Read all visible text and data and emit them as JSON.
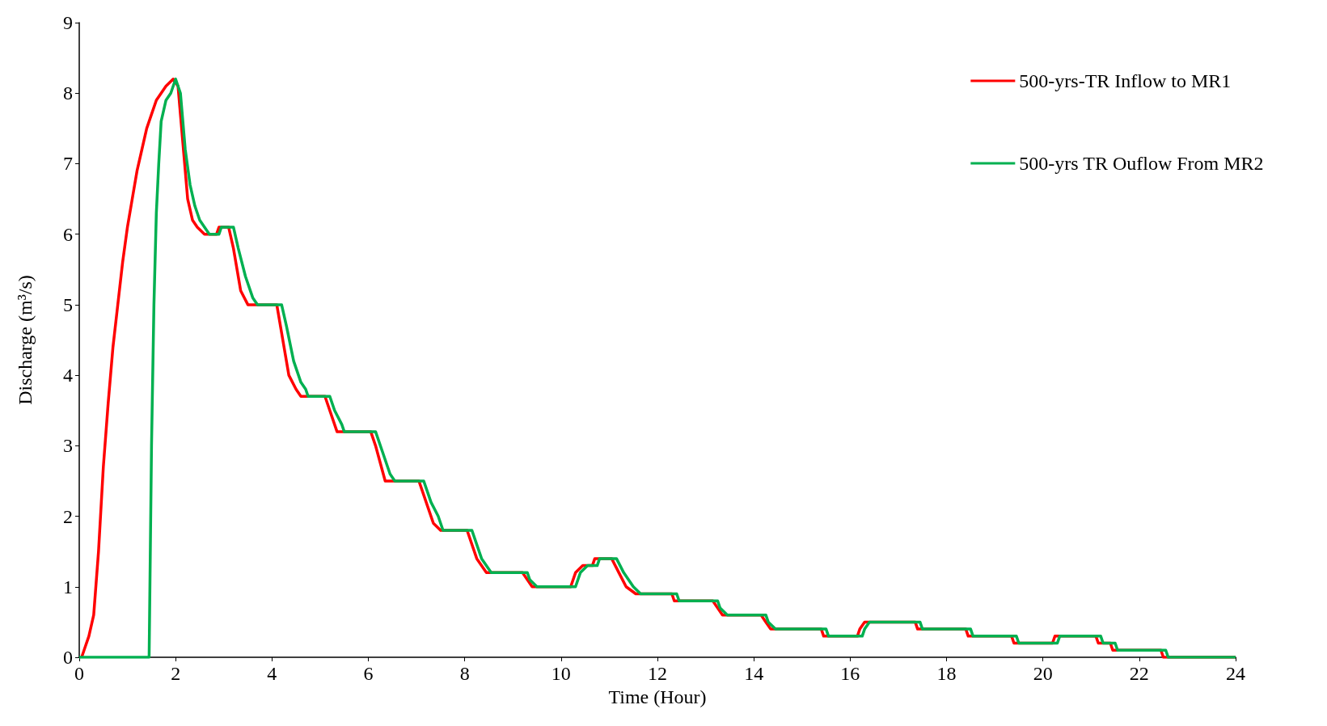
{
  "chart_data": {
    "type": "line",
    "xlabel": "Time (Hour)",
    "ylabel": "Discharge (m³/s)",
    "xlim": [
      0,
      24
    ],
    "xticks": [
      0,
      2,
      4,
      6,
      8,
      10,
      12,
      14,
      16,
      18,
      20,
      22,
      24
    ],
    "ylim": [
      0,
      9
    ],
    "yticks": [
      0,
      1,
      2,
      3,
      4,
      5,
      6,
      7,
      8,
      9
    ],
    "grid": false,
    "legend": "top right",
    "marker": "none",
    "line_style": "solid",
    "series": [
      {
        "name": "500-yrs-TR Inflow to MR1",
        "color": "#ff0000",
        "x": [
          0.05,
          0.1,
          0.2,
          0.3,
          0.4,
          0.5,
          0.6,
          0.7,
          0.8,
          0.9,
          1.0,
          1.1,
          1.2,
          1.3,
          1.4,
          1.5,
          1.6,
          1.7,
          1.8,
          1.95,
          2.05,
          2.15,
          2.25,
          2.35,
          2.45,
          2.6,
          2.85,
          2.9,
          3.1,
          3.2,
          3.35,
          3.5,
          4.1,
          4.2,
          4.35,
          4.5,
          4.6,
          5.1,
          5.2,
          5.35,
          6.05,
          6.15,
          6.35,
          7.05,
          7.2,
          7.35,
          7.5,
          8.05,
          8.25,
          8.45,
          9.2,
          9.3,
          9.4,
          10.2,
          10.3,
          10.45,
          10.65,
          10.7,
          11.05,
          11.2,
          11.35,
          11.55,
          12.3,
          12.35,
          13.15,
          13.25,
          13.35,
          14.15,
          14.25,
          14.35,
          15.4,
          15.45,
          16.15,
          16.2,
          16.3,
          17.35,
          17.4,
          18.4,
          18.45,
          19.35,
          19.4,
          20.2,
          20.25,
          21.1,
          21.15,
          21.4,
          21.45,
          22.45,
          22.5,
          24
        ],
        "values": [
          0,
          0.1,
          0.3,
          0.6,
          1.5,
          2.7,
          3.6,
          4.4,
          5.0,
          5.6,
          6.1,
          6.5,
          6.9,
          7.2,
          7.5,
          7.7,
          7.9,
          8.0,
          8.1,
          8.2,
          8.1,
          7.3,
          6.5,
          6.2,
          6.1,
          6.0,
          6.0,
          6.1,
          6.1,
          5.8,
          5.2,
          5.0,
          5.0,
          4.6,
          4.0,
          3.8,
          3.7,
          3.7,
          3.5,
          3.2,
          3.2,
          3.0,
          2.5,
          2.5,
          2.2,
          1.9,
          1.8,
          1.8,
          1.4,
          1.2,
          1.2,
          1.1,
          1.0,
          1.0,
          1.2,
          1.3,
          1.3,
          1.4,
          1.4,
          1.2,
          1.0,
          0.9,
          0.9,
          0.8,
          0.8,
          0.7,
          0.6,
          0.6,
          0.5,
          0.4,
          0.4,
          0.3,
          0.3,
          0.4,
          0.5,
          0.5,
          0.4,
          0.4,
          0.3,
          0.3,
          0.2,
          0.2,
          0.3,
          0.3,
          0.2,
          0.2,
          0.1,
          0.1,
          0,
          0
        ]
      },
      {
        "name": "500-yrs TR Ouflow From MR2",
        "color": "#00b050",
        "x": [
          0,
          1.45,
          1.5,
          1.55,
          1.6,
          1.65,
          1.7,
          1.8,
          1.9,
          2.0,
          2.1,
          2.2,
          2.3,
          2.4,
          2.5,
          2.6,
          2.7,
          2.9,
          2.95,
          3.2,
          3.3,
          3.45,
          3.6,
          3.7,
          4.2,
          4.3,
          4.45,
          4.6,
          4.7,
          4.75,
          5.2,
          5.3,
          5.45,
          5.5,
          6.15,
          6.3,
          6.45,
          6.55,
          7.15,
          7.3,
          7.45,
          7.55,
          8.15,
          8.35,
          8.55,
          9.3,
          9.35,
          9.5,
          10.3,
          10.4,
          10.55,
          10.75,
          10.8,
          11.15,
          11.3,
          11.5,
          11.65,
          12.4,
          12.45,
          13.25,
          13.3,
          13.45,
          14.25,
          14.3,
          14.45,
          15.5,
          15.55,
          16.25,
          16.3,
          16.4,
          17.45,
          17.5,
          18.5,
          18.55,
          19.45,
          19.5,
          20.3,
          20.35,
          21.2,
          21.25,
          21.5,
          21.55,
          22.55,
          22.6,
          24
        ],
        "values": [
          0,
          0,
          3,
          5,
          6.3,
          7.0,
          7.6,
          7.9,
          8.0,
          8.2,
          8.0,
          7.2,
          6.7,
          6.4,
          6.2,
          6.1,
          6.0,
          6.0,
          6.1,
          6.1,
          5.8,
          5.4,
          5.1,
          5.0,
          5.0,
          4.7,
          4.2,
          3.9,
          3.8,
          3.7,
          3.7,
          3.5,
          3.3,
          3.2,
          3.2,
          2.9,
          2.6,
          2.5,
          2.5,
          2.2,
          2.0,
          1.8,
          1.8,
          1.4,
          1.2,
          1.2,
          1.1,
          1.0,
          1.0,
          1.2,
          1.3,
          1.3,
          1.4,
          1.4,
          1.2,
          1.0,
          0.9,
          0.9,
          0.8,
          0.8,
          0.7,
          0.6,
          0.6,
          0.5,
          0.4,
          0.4,
          0.3,
          0.3,
          0.4,
          0.5,
          0.5,
          0.4,
          0.4,
          0.3,
          0.3,
          0.2,
          0.2,
          0.3,
          0.3,
          0.2,
          0.2,
          0.1,
          0.1,
          0,
          0
        ]
      }
    ]
  }
}
